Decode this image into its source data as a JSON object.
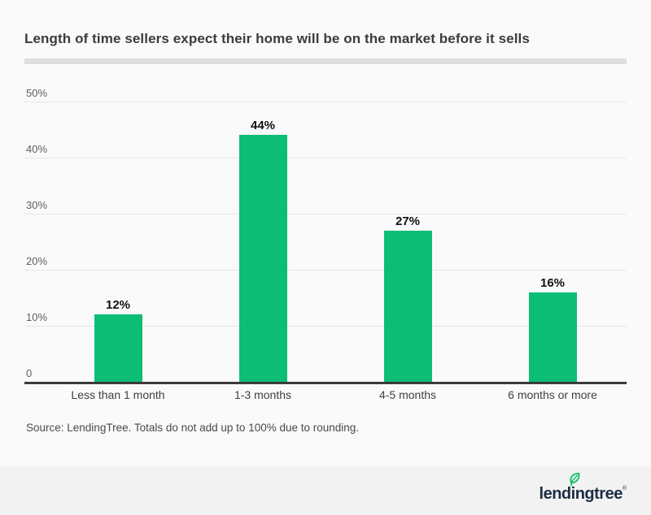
{
  "page": {
    "title": "Length of time sellers expect their home will be on the market before it sells",
    "source_note": "Source: LendingTree. Totals do not add up to 100% due to rounding.",
    "footer": {
      "logo_text": "lendingtree",
      "logo_reg_mark": "®"
    },
    "colors": {
      "background": "#fafafa",
      "footer_background": "#f2f2f3",
      "bar": "#0cbd74",
      "leaf_green": "#1fc06f",
      "logo_navy": "#1c2e45",
      "gridline": "#e5e5e5",
      "axis": "#3c3c3c"
    },
    "icons": {
      "leaf": "lendingtree-leaf-icon"
    }
  },
  "chart_data": {
    "type": "bar",
    "title": "Length of time sellers expect their home will be on the market before it sells",
    "categories": [
      "Less than 1 month",
      "1-3 months",
      "4-5 months",
      "6 months or more"
    ],
    "values": [
      12,
      44,
      27,
      16
    ],
    "value_labels": [
      "12%",
      "44%",
      "27%",
      "16%"
    ],
    "y_ticks": [
      50,
      40,
      30,
      20,
      10,
      0
    ],
    "y_tick_labels": [
      "50%",
      "40%",
      "30%",
      "20%",
      "10%",
      "0"
    ],
    "ylim": [
      0,
      50
    ],
    "xlabel": "",
    "ylabel": "",
    "grid": true,
    "legend": "none",
    "bar_color": "#0cbd74"
  }
}
